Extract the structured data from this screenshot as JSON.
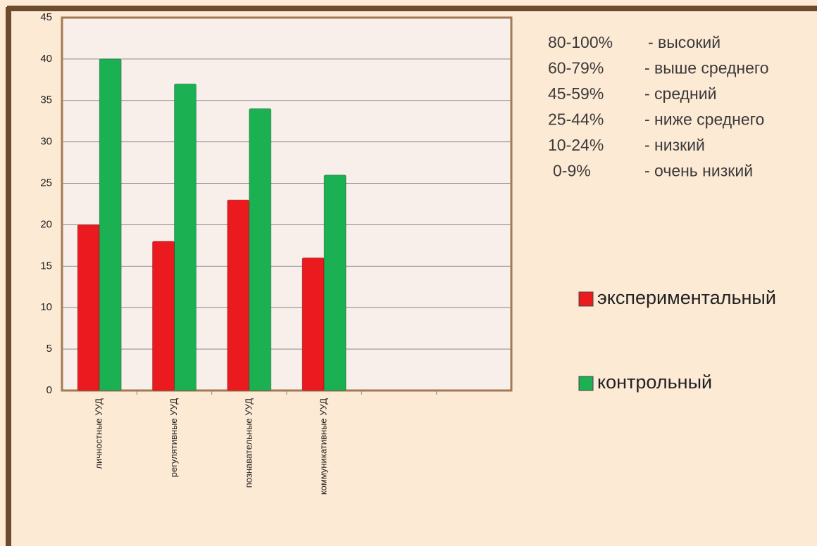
{
  "chart_data": {
    "type": "bar",
    "categories": [
      "личностные УУД",
      "регулятивные УУД",
      "познавательные УУД",
      "коммуникативные УУД",
      null,
      null
    ],
    "series": [
      {
        "name": "экспериментальный",
        "color": "#ea1a1f",
        "values": [
          20,
          18,
          23,
          16,
          null,
          null
        ]
      },
      {
        "name": "контрольный",
        "color": "#1bb152",
        "values": [
          40,
          37,
          34,
          26,
          null,
          null
        ]
      }
    ],
    "ylim": [
      0,
      45
    ],
    "yticks": [
      0,
      5,
      10,
      15,
      20,
      25,
      30,
      35,
      40,
      45
    ],
    "grid": true,
    "legend": "right",
    "annotations": [
      [
        "80-100%",
        "- высокий"
      ],
      [
        "60-79%",
        "- выше среднего"
      ],
      [
        "45-59%",
        "- средний"
      ],
      [
        "25-44%",
        "- ниже среднего"
      ],
      [
        "10-24%",
        "- низкий"
      ],
      [
        "0-9%",
        "- очень низкий"
      ]
    ]
  }
}
